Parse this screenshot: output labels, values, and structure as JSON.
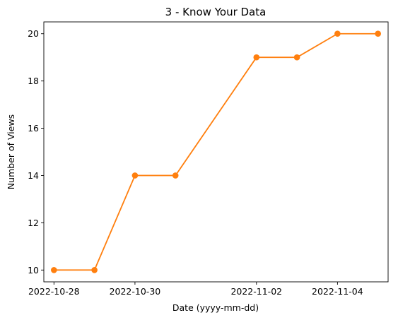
{
  "chart_data": {
    "type": "line",
    "title": "3 - Know Your Data",
    "xlabel": "Date (yyyy-mm-dd)",
    "ylabel": "Number of Views",
    "x_ticks": [
      "2022-10-28",
      "2022-10-30",
      "2022-11-02",
      "2022-11-04"
    ],
    "y_ticks": [
      10,
      12,
      14,
      16,
      18,
      20
    ],
    "ylim": [
      9.5,
      20.5
    ],
    "xlim": [
      "2022-10-27T18:00",
      "2022-11-05T06:00"
    ],
    "grid": false,
    "series": [
      {
        "color": "#ff7f0e",
        "marker": "circle",
        "x": [
          "2022-10-28",
          "2022-10-29",
          "2022-10-30",
          "2022-10-31",
          "2022-11-02",
          "2022-11-03",
          "2022-11-04",
          "2022-11-05"
        ],
        "values": [
          10,
          10,
          14,
          14,
          19,
          19,
          20,
          20
        ]
      }
    ]
  }
}
